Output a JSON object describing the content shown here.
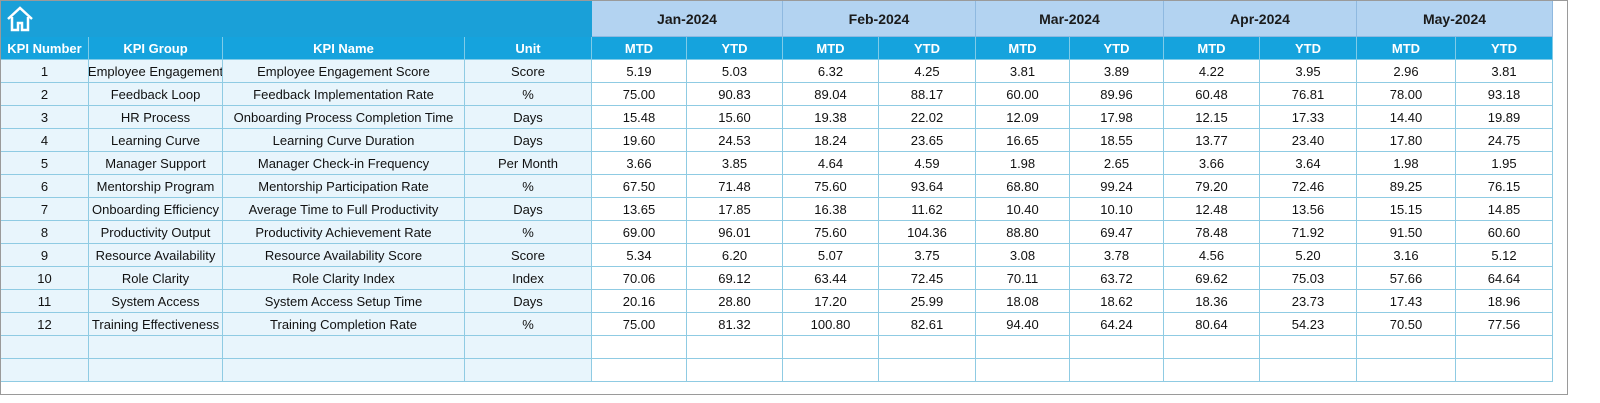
{
  "header": {
    "columns": [
      "KPI Number",
      "KPI Group",
      "KPI Name",
      "Unit"
    ],
    "months": [
      {
        "label": "Jan-2024",
        "mtd": "MTD",
        "ytd": "YTD"
      },
      {
        "label": "Feb-2024",
        "mtd": "MTD",
        "ytd": "YTD"
      },
      {
        "label": "Mar-2024",
        "mtd": "MTD",
        "ytd": "YTD"
      },
      {
        "label": "Apr-2024",
        "mtd": "MTD",
        "ytd": "YTD"
      },
      {
        "label": "May-2024",
        "mtd": "MTD",
        "ytd": "YTD"
      }
    ]
  },
  "table": {
    "rows": [
      [
        "1",
        "Employee Engagement",
        "Employee Engagement Score",
        "Score",
        "5.19",
        "5.03",
        "6.32",
        "4.25",
        "3.81",
        "3.89",
        "4.22",
        "3.95",
        "2.96",
        "3.81"
      ],
      [
        "2",
        "Feedback Loop",
        "Feedback Implementation Rate",
        "%",
        "75.00",
        "90.83",
        "89.04",
        "88.17",
        "60.00",
        "89.96",
        "60.48",
        "76.81",
        "78.00",
        "93.18"
      ],
      [
        "3",
        "HR Process",
        "Onboarding Process Completion Time",
        "Days",
        "15.48",
        "15.60",
        "19.38",
        "22.02",
        "12.09",
        "17.98",
        "12.15",
        "17.33",
        "14.40",
        "19.89"
      ],
      [
        "4",
        "Learning Curve",
        "Learning Curve Duration",
        "Days",
        "19.60",
        "24.53",
        "18.24",
        "23.65",
        "16.65",
        "18.55",
        "13.77",
        "23.40",
        "17.80",
        "24.75"
      ],
      [
        "5",
        "Manager Support",
        "Manager Check-in Frequency",
        "Per Month",
        "3.66",
        "3.85",
        "4.64",
        "4.59",
        "1.98",
        "2.65",
        "3.66",
        "3.64",
        "1.98",
        "1.95"
      ],
      [
        "6",
        "Mentorship Program",
        "Mentorship Participation Rate",
        "%",
        "67.50",
        "71.48",
        "75.60",
        "93.64",
        "68.80",
        "99.24",
        "79.20",
        "72.46",
        "89.25",
        "76.15"
      ],
      [
        "7",
        "Onboarding Efficiency",
        "Average Time to Full Productivity",
        "Days",
        "13.65",
        "17.85",
        "16.38",
        "11.62",
        "10.40",
        "10.10",
        "12.48",
        "13.56",
        "15.15",
        "14.85"
      ],
      [
        "8",
        "Productivity Output",
        "Productivity Achievement Rate",
        "%",
        "69.00",
        "96.01",
        "75.60",
        "104.36",
        "88.80",
        "69.47",
        "78.48",
        "71.92",
        "91.50",
        "60.60"
      ],
      [
        "9",
        "Resource Availability",
        "Resource Availability Score",
        "Score",
        "5.34",
        "6.20",
        "5.07",
        "3.75",
        "3.08",
        "3.78",
        "4.56",
        "5.20",
        "3.16",
        "5.12"
      ],
      [
        "10",
        "Role Clarity",
        "Role Clarity Index",
        "Index",
        "70.06",
        "69.12",
        "63.44",
        "72.45",
        "70.11",
        "63.72",
        "69.62",
        "75.03",
        "57.66",
        "64.64"
      ],
      [
        "11",
        "System Access",
        "System Access Setup Time",
        "Days",
        "20.16",
        "28.80",
        "17.20",
        "25.99",
        "18.08",
        "18.62",
        "18.36",
        "23.73",
        "17.43",
        "18.96"
      ],
      [
        "12",
        "Training Effectiveness",
        "Training Completion Rate",
        "%",
        "75.00",
        "81.32",
        "100.80",
        "82.61",
        "94.40",
        "64.24",
        "80.64",
        "54.23",
        "70.50",
        "77.56"
      ]
    ]
  }
}
